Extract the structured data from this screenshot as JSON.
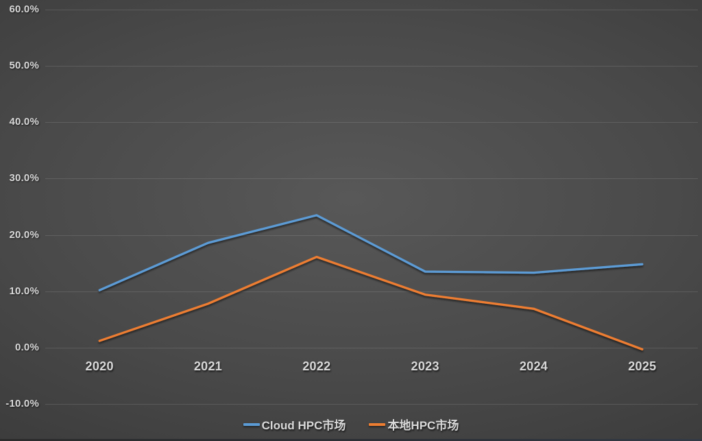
{
  "chart_data": {
    "type": "line",
    "title": "",
    "categories": [
      "2020",
      "2021",
      "2022",
      "2023",
      "2024",
      "2025"
    ],
    "series": [
      {
        "name": "Cloud HPC市场",
        "color": "#5B9BD5",
        "values": [
          10.2,
          18.6,
          23.5,
          13.5,
          13.3,
          14.8
        ]
      },
      {
        "name": "本地HPC市场",
        "color": "#ED7D31",
        "values": [
          1.2,
          7.8,
          16.1,
          9.4,
          6.9,
          -0.3
        ]
      }
    ],
    "y_axis": {
      "min": -10,
      "max": 60,
      "step": 10,
      "tick_labels": [
        "60.0%",
        "50.0%",
        "40.0%",
        "30.0%",
        "20.0%",
        "10.0%",
        "0.0%",
        "-10.0%"
      ]
    },
    "x_axis": {
      "tick_labels": [
        "2020",
        "2021",
        "2022",
        "2023",
        "2024",
        "2025"
      ]
    },
    "grid": true,
    "legend_position": "bottom"
  },
  "style": {
    "background_center": "#585858",
    "background_edge": "#2b2b2b",
    "grid_color": "rgba(255,255,255,0.12)",
    "label_color": "#d9d9d9",
    "series_blue": "#5B9BD5",
    "series_orange": "#ED7D31"
  }
}
